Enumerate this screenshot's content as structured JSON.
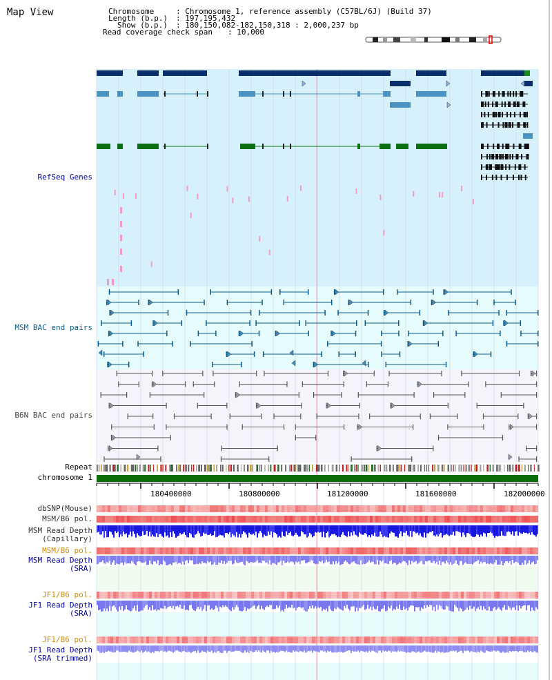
{
  "title": "Map View",
  "header": {
    "chromosome_key": "Chromosome",
    "chromosome_val": ": Chromosome 1, reference assembly (C57BL/6J) (Build 37)",
    "length_key": "Length (b.p.)",
    "length_val": ": 197,195,432",
    "show_key": "Show (b.p.)",
    "show_val": ": 180,150,082-182,150,318 : 2,000,237 bp",
    "coverage_key": "Read coverage check span",
    "coverage_val": ": 10,000"
  },
  "tracks": {
    "refseq": "RefSeq Genes",
    "msm_bac": "MSM BAC end pairs",
    "b6n_bac": "B6N BAC end pairs",
    "repeat": "Repeat",
    "chromosome": "chromosome 1",
    "dbsnp": "dbSNP(Mouse)",
    "msm_b6_pol": "MSM/B6 pol.",
    "msm_depth_cap_1": "MSM Read Depth",
    "msm_depth_cap_2": "(Capillary)",
    "msm_b6_pol_2": "MSM/B6 pol.",
    "msm_depth_sra_1": "MSM Read Depth",
    "msm_depth_sra_2": "(SRA)",
    "jf1_b6_pol": "JF1/B6 pol.",
    "jf1_depth_sra_1": "JF1 Read Depth",
    "jf1_depth_sra_2": "(SRA)",
    "jf1_b6_pol_2": "JF1/B6 pol.",
    "jf1_depth_trim_1": "JF1 Read Depth",
    "jf1_depth_trim_2": "(SRA trimmed)"
  },
  "axis": {
    "ticks": [
      "180400000",
      "180800000",
      "181200000",
      "181600000",
      "182000000"
    ]
  },
  "colors": {
    "refseq_bg": "#d6f1fb",
    "bac_bg": "#e6fbfb",
    "b6n_bg": "#f4f5fb",
    "gene_dark": "#0b2f6b",
    "gene_mid": "#4a93c0",
    "gene_green": "#0b6e12",
    "chrom_green": "#0b6e0b",
    "label_blue": "#0000a0",
    "label_orange": "#d88a00"
  }
}
